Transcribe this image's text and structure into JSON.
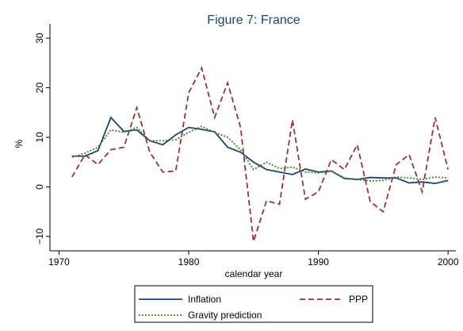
{
  "chart_data": {
    "type": "line",
    "title": "Figure 7: France",
    "xlabel": "calendar year",
    "ylabel": "%",
    "x": [
      1971,
      1972,
      1973,
      1974,
      1975,
      1976,
      1977,
      1978,
      1979,
      1980,
      1981,
      1982,
      1983,
      1984,
      1985,
      1986,
      1987,
      1988,
      1989,
      1990,
      1991,
      1992,
      1993,
      1994,
      1995,
      1996,
      1997,
      1998,
      1999,
      2000
    ],
    "series": [
      {
        "name": "Inflation",
        "color": "#1a476f",
        "style": "solid",
        "values": [
          6.2,
          6.2,
          7.3,
          14,
          11.2,
          11.5,
          9.3,
          8.5,
          10.5,
          12,
          11.6,
          11.1,
          8,
          7,
          5,
          3.5,
          3,
          2.5,
          3.6,
          3,
          3.2,
          1.7,
          1.5,
          1.9,
          1.8,
          1.8,
          0.8,
          1,
          0.7,
          1.3
        ]
      },
      {
        "name": "PPP",
        "color": "#90353b",
        "style": "dashed",
        "values": [
          2,
          6.5,
          4.5,
          7.5,
          8,
          16,
          7,
          3,
          3.2,
          19,
          24,
          14,
          21,
          12,
          -11,
          -2.8,
          -3.5,
          13.5,
          -2.5,
          -1,
          5.5,
          3.5,
          8.5,
          -3,
          -5,
          4.5,
          6.5,
          -1,
          14,
          3.5
        ]
      },
      {
        "name": "Gravity prediction",
        "color": "#55752f",
        "style": "dotted",
        "values": [
          6,
          6.8,
          8,
          11.5,
          11,
          12,
          9.3,
          9.3,
          9.5,
          11,
          12.2,
          11,
          10,
          7.5,
          3.5,
          5,
          3.7,
          4,
          3,
          2.8,
          3.2,
          1.8,
          1.5,
          1.2,
          1.3,
          2,
          1.8,
          1.5,
          2,
          1.8
        ]
      }
    ],
    "xlim": [
      1969.3,
      2000.6
    ],
    "xticks": [
      1970,
      1980,
      1990,
      2000
    ],
    "ylim": [
      -12.9,
      32.9
    ],
    "yticks": [
      {
        "value": -10,
        "label": "−10"
      },
      0,
      10,
      20,
      30
    ],
    "grid": false
  }
}
